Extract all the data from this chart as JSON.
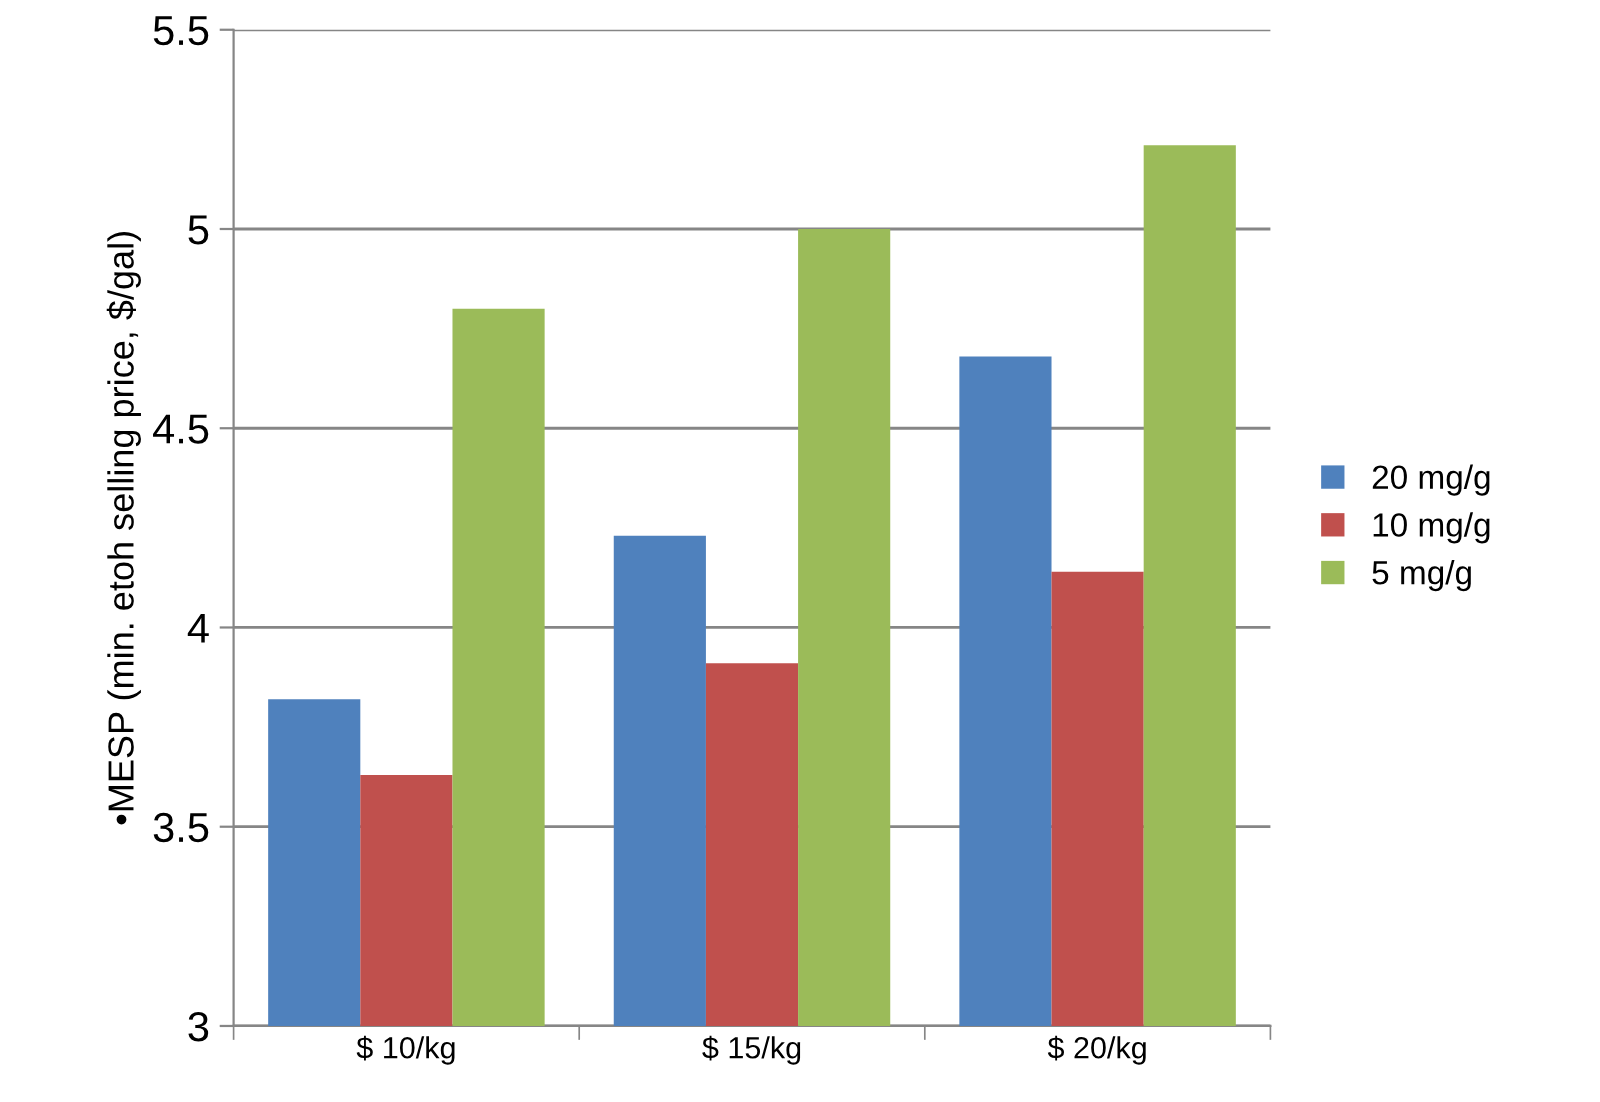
{
  "chart_data": {
    "type": "bar",
    "ylabel": "•MESP (min. etoh selling price, $/gal)",
    "categories": [
      "$ 10/kg",
      "$ 15/kg",
      "$ 20/kg"
    ],
    "series": [
      {
        "name": "20 mg/g",
        "color": "#4f81bd",
        "values": [
          3.82,
          4.23,
          4.68
        ]
      },
      {
        "name": "10 mg/g",
        "color": "#c0504d",
        "values": [
          3.63,
          3.91,
          4.14
        ]
      },
      {
        "name": "5 mg/g",
        "color": "#9bbb59",
        "values": [
          4.8,
          5.0,
          5.21
        ]
      }
    ],
    "ylim": [
      3,
      5.5
    ],
    "yticks": [
      3,
      3.5,
      4,
      4.5,
      5,
      5.5
    ],
    "grid": "y",
    "legend": "right"
  }
}
